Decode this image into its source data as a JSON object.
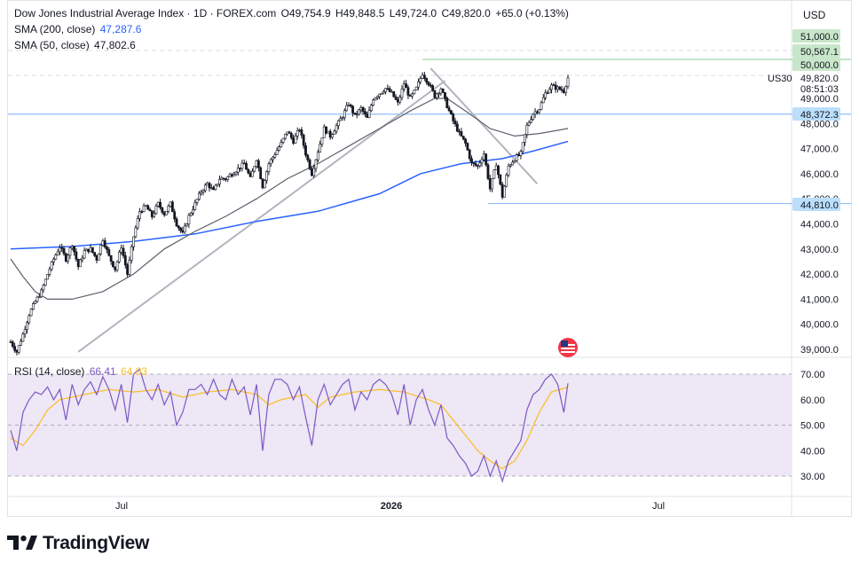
{
  "header": {
    "symbol_title": "Dow Jones Industrial Average Index · 1D · FOREX.com",
    "ohlc": {
      "open": "O49,754.9",
      "high": "H49,848.5",
      "low": "L49,724.0",
      "close": "C49,820.0",
      "change": "+65.0 (+0.13%)"
    },
    "sma200": {
      "label": "SMA (200, close)",
      "value": "47,287.6",
      "color": "#2962ff"
    },
    "sma50": {
      "label": "SMA (50, close)",
      "value": "47,802.6",
      "color": "#131722"
    },
    "currency": "USD",
    "symbol_tag": "US30",
    "countdown": "08:51:03"
  },
  "rsi": {
    "label": "RSI (14, close)",
    "value": "66.41",
    "ma_value": "64.93",
    "color": "#7e57c2",
    "ma_color": "#fbc02d"
  },
  "colors": {
    "up": "#131722",
    "down": "#131722",
    "sma200": "#2962ff",
    "sma50": "#5d606b",
    "trendline": "#b2b5be",
    "hline": "#90bff9",
    "resist_line": "#a5d6a7",
    "rsi_band": "#ede7f6",
    "accent_green": "#c8e6c9",
    "accent_blue": "#bbdefb"
  },
  "price_boxes": [
    {
      "label": "51,000.0",
      "value": 51000,
      "bg": "#c8e6c9"
    },
    {
      "label": "50,567.1",
      "value": 50567.1,
      "bg": "#c8e6c9"
    },
    {
      "label": "50,000.0",
      "value": 50000,
      "bg": "#c8e6c9"
    },
    {
      "label": "48,372.3",
      "value": 48372.3,
      "bg": "#bbdefb"
    },
    {
      "label": "44,810.0",
      "value": 44810,
      "bg": "#bbdefb"
    }
  ],
  "brand": "TradingView",
  "chart_data": {
    "type": "candlestick",
    "y_axis": {
      "ticks": [
        39000,
        40000,
        41000,
        42000,
        43000,
        44000,
        45000,
        46000,
        47000,
        48000,
        49000
      ],
      "tick_labels": [
        "39,000.0",
        "40,000.0",
        "41,000.0",
        "42,000.0",
        "43,000.0",
        "44,000.0",
        "45,000.0",
        "46,000.0",
        "47,000.0",
        "48,000.0",
        "49,000.0"
      ],
      "current_price": 49820.0,
      "current_price_label": "49,820.0"
    },
    "x_axis": {
      "tick_labels": [
        "Jul",
        "2026",
        "Jul"
      ]
    },
    "horizontal_levels": [
      50567.1,
      48372.3,
      44810
    ],
    "close_path": [
      [
        0,
        39300
      ],
      [
        3,
        38900
      ],
      [
        6,
        39600
      ],
      [
        9,
        40400
      ],
      [
        12,
        40900
      ],
      [
        15,
        41300
      ],
      [
        18,
        42000
      ],
      [
        21,
        42600
      ],
      [
        24,
        43100
      ],
      [
        27,
        42600
      ],
      [
        30,
        43200
      ],
      [
        33,
        42300
      ],
      [
        36,
        42900
      ],
      [
        39,
        43000
      ],
      [
        42,
        42600
      ],
      [
        45,
        43400
      ],
      [
        48,
        42700
      ],
      [
        51,
        42200
      ],
      [
        54,
        43100
      ],
      [
        57,
        42000
      ],
      [
        60,
        43500
      ],
      [
        63,
        44500
      ],
      [
        66,
        44700
      ],
      [
        69,
        44300
      ],
      [
        72,
        44800
      ],
      [
        75,
        44400
      ],
      [
        78,
        44800
      ],
      [
        81,
        44000
      ],
      [
        84,
        43600
      ],
      [
        87,
        44300
      ],
      [
        90,
        44800
      ],
      [
        93,
        45300
      ],
      [
        96,
        45600
      ],
      [
        99,
        45300
      ],
      [
        102,
        45800
      ],
      [
        105,
        45800
      ],
      [
        108,
        46000
      ],
      [
        111,
        46200
      ],
      [
        114,
        46400
      ],
      [
        117,
        45800
      ],
      [
        120,
        46600
      ],
      [
        123,
        45500
      ],
      [
        126,
        46400
      ],
      [
        129,
        46800
      ],
      [
        132,
        47200
      ],
      [
        135,
        47700
      ],
      [
        138,
        47300
      ],
      [
        141,
        47800
      ],
      [
        144,
        46800
      ],
      [
        147,
        46000
      ],
      [
        150,
        46900
      ],
      [
        153,
        47800
      ],
      [
        156,
        47500
      ],
      [
        159,
        47900
      ],
      [
        162,
        48300
      ],
      [
        165,
        48800
      ],
      [
        168,
        48300
      ],
      [
        171,
        48600
      ],
      [
        174,
        48200
      ],
      [
        177,
        49000
      ],
      [
        180,
        49200
      ],
      [
        183,
        49400
      ],
      [
        186,
        49200
      ],
      [
        189,
        48800
      ],
      [
        192,
        49600
      ],
      [
        195,
        49000
      ],
      [
        198,
        49400
      ],
      [
        201,
        50000
      ],
      [
        204,
        49600
      ],
      [
        207,
        49100
      ],
      [
        210,
        49400
      ],
      [
        213,
        48700
      ],
      [
        216,
        48100
      ],
      [
        219,
        47600
      ],
      [
        222,
        47200
      ],
      [
        225,
        46400
      ],
      [
        228,
        46300
      ],
      [
        231,
        46800
      ],
      [
        234,
        45400
      ],
      [
        237,
        46400
      ],
      [
        240,
        45100
      ],
      [
        243,
        46300
      ],
      [
        246,
        46600
      ],
      [
        249,
        46800
      ],
      [
        252,
        47900
      ],
      [
        255,
        48400
      ],
      [
        258,
        48600
      ],
      [
        261,
        49200
      ],
      [
        264,
        49500
      ],
      [
        267,
        49400
      ],
      [
        270,
        49300
      ],
      [
        272,
        49820
      ]
    ],
    "sma200_path": [
      [
        0,
        43000
      ],
      [
        30,
        43100
      ],
      [
        60,
        43300
      ],
      [
        90,
        43600
      ],
      [
        120,
        44100
      ],
      [
        150,
        44500
      ],
      [
        180,
        45200
      ],
      [
        200,
        46000
      ],
      [
        220,
        46400
      ],
      [
        240,
        46600
      ],
      [
        255,
        46900
      ],
      [
        272,
        47287.6
      ]
    ],
    "sma50_path": [
      [
        0,
        42600
      ],
      [
        6,
        41900
      ],
      [
        12,
        41300
      ],
      [
        18,
        41000
      ],
      [
        30,
        41000
      ],
      [
        45,
        41300
      ],
      [
        60,
        42000
      ],
      [
        75,
        43000
      ],
      [
        90,
        43700
      ],
      [
        105,
        44300
      ],
      [
        120,
        45000
      ],
      [
        135,
        45800
      ],
      [
        150,
        46400
      ],
      [
        165,
        47100
      ],
      [
        180,
        47800
      ],
      [
        195,
        48500
      ],
      [
        207,
        49000
      ],
      [
        213,
        49000
      ],
      [
        222,
        48500
      ],
      [
        234,
        47800
      ],
      [
        246,
        47500
      ],
      [
        258,
        47600
      ],
      [
        272,
        47802.6
      ]
    ],
    "trendlines": [
      {
        "from": [
          33,
          38900
        ],
        "to": [
          212,
          49700
        ]
      },
      {
        "from": [
          205,
          50200
        ],
        "to": [
          257,
          45600
        ]
      }
    ],
    "rsi_axis": {
      "ticks": [
        30,
        40,
        50,
        60,
        70
      ],
      "tick_labels": [
        "30.00",
        "40.00",
        "50.00",
        "60.00",
        "70.00"
      ],
      "band": [
        30,
        70
      ]
    },
    "rsi_path": [
      [
        0,
        48
      ],
      [
        3,
        40
      ],
      [
        6,
        55
      ],
      [
        9,
        60
      ],
      [
        12,
        63
      ],
      [
        15,
        62
      ],
      [
        18,
        65
      ],
      [
        21,
        60
      ],
      [
        24,
        64
      ],
      [
        27,
        52
      ],
      [
        30,
        66
      ],
      [
        33,
        58
      ],
      [
        36,
        64
      ],
      [
        39,
        67
      ],
      [
        42,
        62
      ],
      [
        45,
        69
      ],
      [
        48,
        64
      ],
      [
        51,
        56
      ],
      [
        54,
        66
      ],
      [
        57,
        51
      ],
      [
        60,
        70
      ],
      [
        63,
        72
      ],
      [
        66,
        64
      ],
      [
        69,
        60
      ],
      [
        72,
        66
      ],
      [
        75,
        58
      ],
      [
        78,
        63
      ],
      [
        81,
        50
      ],
      [
        84,
        55
      ],
      [
        87,
        64
      ],
      [
        90,
        64
      ],
      [
        93,
        66
      ],
      [
        96,
        62
      ],
      [
        99,
        68
      ],
      [
        102,
        62
      ],
      [
        105,
        60
      ],
      [
        108,
        68
      ],
      [
        111,
        62
      ],
      [
        114,
        65
      ],
      [
        117,
        54
      ],
      [
        120,
        66
      ],
      [
        123,
        40
      ],
      [
        126,
        62
      ],
      [
        129,
        68
      ],
      [
        132,
        68
      ],
      [
        135,
        66
      ],
      [
        138,
        60
      ],
      [
        141,
        65
      ],
      [
        144,
        53
      ],
      [
        147,
        42
      ],
      [
        150,
        60
      ],
      [
        153,
        66
      ],
      [
        156,
        58
      ],
      [
        159,
        62
      ],
      [
        162,
        66
      ],
      [
        165,
        68
      ],
      [
        168,
        56
      ],
      [
        171,
        63
      ],
      [
        174,
        60
      ],
      [
        177,
        66
      ],
      [
        180,
        68
      ],
      [
        183,
        66
      ],
      [
        186,
        62
      ],
      [
        189,
        54
      ],
      [
        192,
        66
      ],
      [
        195,
        50
      ],
      [
        198,
        60
      ],
      [
        201,
        64
      ],
      [
        204,
        56
      ],
      [
        207,
        50
      ],
      [
        210,
        58
      ],
      [
        213,
        45
      ],
      [
        216,
        42
      ],
      [
        219,
        38
      ],
      [
        222,
        35
      ],
      [
        225,
        30
      ],
      [
        228,
        32
      ],
      [
        231,
        38
      ],
      [
        234,
        30
      ],
      [
        237,
        36
      ],
      [
        240,
        28
      ],
      [
        243,
        36
      ],
      [
        246,
        40
      ],
      [
        249,
        44
      ],
      [
        252,
        56
      ],
      [
        255,
        62
      ],
      [
        258,
        64
      ],
      [
        261,
        68
      ],
      [
        264,
        70
      ],
      [
        267,
        66
      ],
      [
        270,
        55
      ],
      [
        272,
        66.41
      ]
    ],
    "rsi_ma_path": [
      [
        0,
        45
      ],
      [
        6,
        42
      ],
      [
        12,
        48
      ],
      [
        18,
        56
      ],
      [
        24,
        60
      ],
      [
        36,
        62
      ],
      [
        48,
        64
      ],
      [
        60,
        63
      ],
      [
        72,
        64
      ],
      [
        84,
        61
      ],
      [
        96,
        63
      ],
      [
        108,
        64
      ],
      [
        120,
        62
      ],
      [
        126,
        58
      ],
      [
        132,
        60
      ],
      [
        144,
        62
      ],
      [
        150,
        57
      ],
      [
        156,
        61
      ],
      [
        168,
        63
      ],
      [
        180,
        64
      ],
      [
        192,
        63
      ],
      [
        204,
        60
      ],
      [
        210,
        58
      ],
      [
        216,
        52
      ],
      [
        222,
        46
      ],
      [
        228,
        40
      ],
      [
        234,
        36
      ],
      [
        240,
        33
      ],
      [
        246,
        36
      ],
      [
        252,
        44
      ],
      [
        258,
        55
      ],
      [
        264,
        63
      ],
      [
        272,
        64.93
      ]
    ]
  }
}
